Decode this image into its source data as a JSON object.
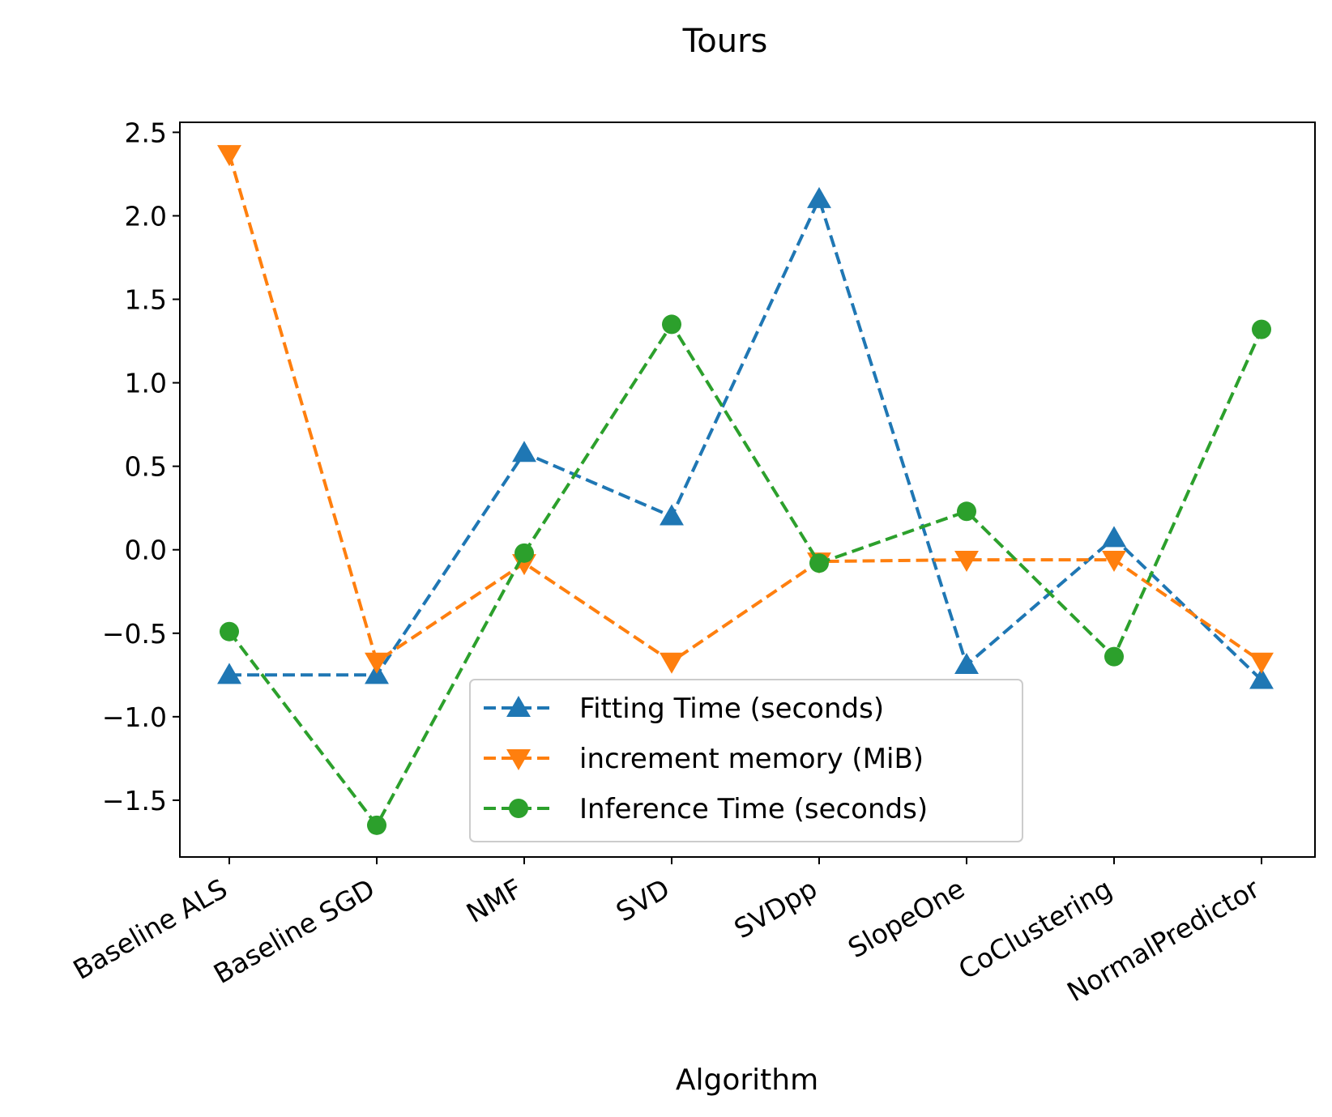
{
  "chart_data": {
    "type": "line",
    "title": "Tours",
    "xlabel": "Algorithm",
    "ylabel": "",
    "categories": [
      "Baseline ALS",
      "Baseline SGD",
      "NMF",
      "SVD",
      "SVDpp",
      "SlopeOne",
      "CoClustering",
      "NormalPredictor"
    ],
    "ylim": [
      -1.84,
      2.56
    ],
    "yticks": [
      {
        "value": 2.5,
        "label": "2.5"
      },
      {
        "value": 2.0,
        "label": "2.0"
      },
      {
        "value": 1.5,
        "label": "1.5"
      },
      {
        "value": 1.0,
        "label": "1.0"
      },
      {
        "value": 0.5,
        "label": "0.5"
      },
      {
        "value": 0.0,
        "label": "0.0"
      },
      {
        "value": -0.5,
        "label": "−0.5"
      },
      {
        "value": -1.0,
        "label": "−1.0"
      },
      {
        "value": -1.5,
        "label": "−1.5"
      }
    ],
    "grid": false,
    "legend_position": "lower-center",
    "series": [
      {
        "name": "Fitting Time (seconds)",
        "color": "#1f77b4",
        "marker": "triangle-up",
        "linestyle": "dashed",
        "values": [
          -0.75,
          -0.75,
          0.58,
          0.2,
          2.1,
          -0.69,
          0.07,
          -0.78
        ]
      },
      {
        "name": "increment memory (MiB)",
        "color": "#ff7f0e",
        "marker": "triangle-down",
        "linestyle": "dashed",
        "values": [
          2.37,
          -0.67,
          -0.08,
          -0.67,
          -0.07,
          -0.06,
          -0.06,
          -0.67
        ]
      },
      {
        "name": "Inference Time (seconds)",
        "color": "#2ca02c",
        "marker": "circle",
        "linestyle": "dashed",
        "values": [
          -0.49,
          -1.65,
          -0.02,
          1.35,
          -0.08,
          0.23,
          -0.64,
          1.32
        ]
      }
    ]
  }
}
